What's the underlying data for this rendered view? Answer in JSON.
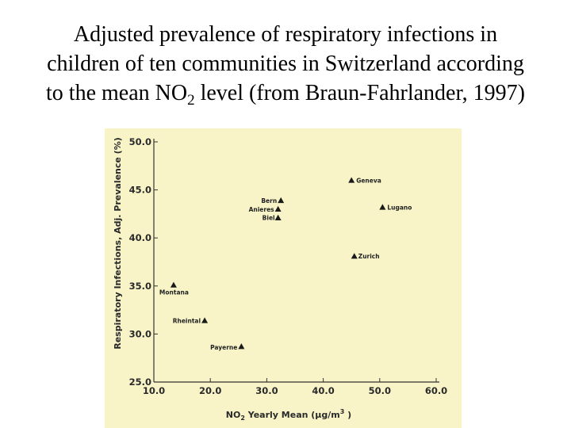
{
  "title": {
    "line1": "Adjusted prevalence of respiratory infections in",
    "line2": "children of ten communities in Switzerland according",
    "line3_pre": "to the mean NO",
    "line3_sub": "2",
    "line3_post": " level  (from Braun-Fahrlander, 1997)"
  },
  "colors": {
    "panel_background": "#f8f4c8",
    "axis": "#333333",
    "marker": "#1a1a1a"
  },
  "chart_data": {
    "type": "scatter",
    "xlabel_pre": "NO",
    "xlabel_sub": "2",
    "xlabel_mid": " Yearly Mean  (µg/m",
    "xlabel_sup": "3",
    "xlabel_post": " )",
    "ylabel": "Respiratory Infections, Adj. Prevalence (%)",
    "xlim": [
      10.0,
      60.0
    ],
    "ylim": [
      25.0,
      50.0
    ],
    "x_ticks": [
      "10.0",
      "20.0",
      "30.0",
      "40.0",
      "50.0",
      "60.0"
    ],
    "y_ticks": [
      "25.0",
      "30.0",
      "35.0",
      "40.0",
      "45.0",
      "50.0"
    ],
    "grid": false,
    "marker": "triangle",
    "points": [
      {
        "label": "Geneva",
        "x": 45.0,
        "y": 46.0
      },
      {
        "label": "Bern",
        "x": 32.5,
        "y": 43.9
      },
      {
        "label": "Anieres",
        "x": 32.0,
        "y": 43.0
      },
      {
        "label": "Biel",
        "x": 32.0,
        "y": 42.1
      },
      {
        "label": "Lugano",
        "x": 50.5,
        "y": 43.2
      },
      {
        "label": "Zurich",
        "x": 45.5,
        "y": 38.1
      },
      {
        "label": "Montana",
        "x": 13.5,
        "y": 35.1
      },
      {
        "label": "Rheintal",
        "x": 19.0,
        "y": 31.4
      },
      {
        "label": "Payerne",
        "x": 25.5,
        "y": 28.7
      }
    ]
  }
}
